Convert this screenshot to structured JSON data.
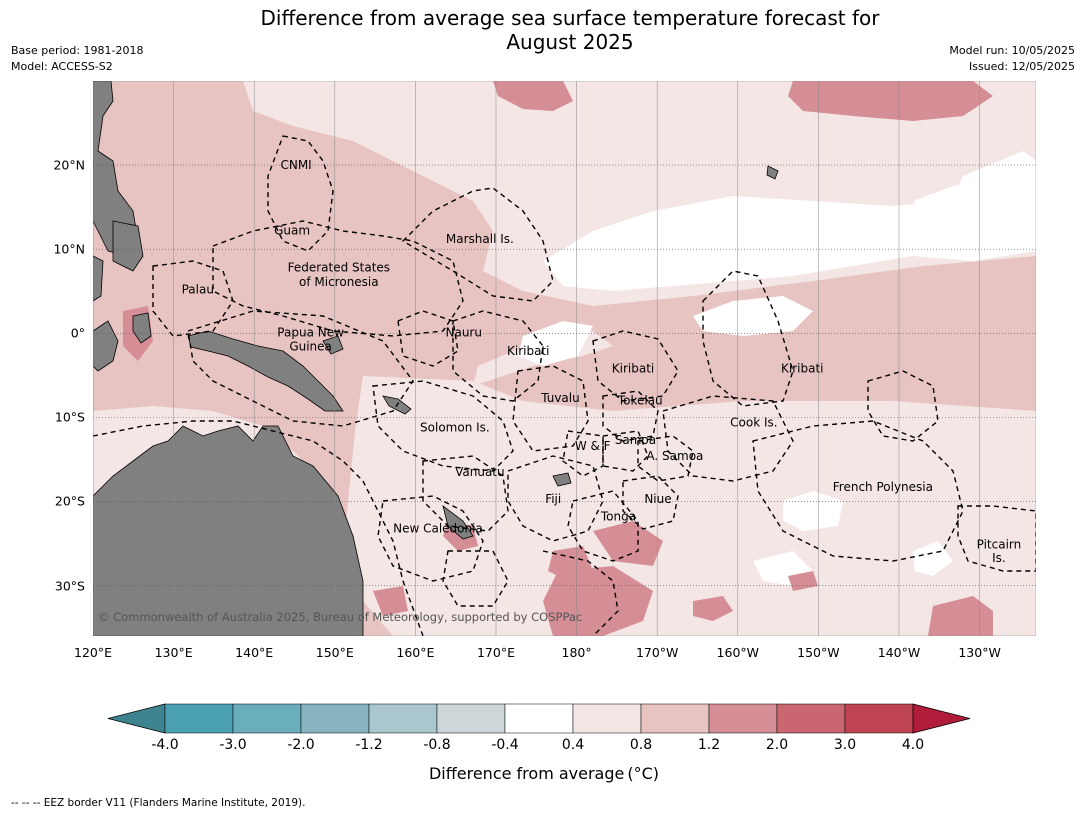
{
  "title_line1": "Difference from average sea surface temperature forecast for",
  "title_line2": "August 2025",
  "meta_left": [
    "Base period: 1981-2018",
    "Model: ACCESS-S2"
  ],
  "meta_right": [
    "Model run: 10/05/2025",
    "Issued: 12/05/2025"
  ],
  "copyright": "© Commonwealth of Australia 2025, Bureau of Meteorology, supported by COSPPac",
  "lat_labels": [
    {
      "text": "20°N",
      "lat": 20
    },
    {
      "text": "10°N",
      "lat": 10
    },
    {
      "text": "0°",
      "lat": 0
    },
    {
      "text": "10°S",
      "lat": -10
    },
    {
      "text": "20°S",
      "lat": -20
    },
    {
      "text": "30°S",
      "lat": -30
    }
  ],
  "lon_labels": [
    {
      "text": "120°E",
      "lon": 120
    },
    {
      "text": "130°E",
      "lon": 130
    },
    {
      "text": "140°E",
      "lon": 140
    },
    {
      "text": "150°E",
      "lon": 150
    },
    {
      "text": "160°E",
      "lon": 160
    },
    {
      "text": "170°E",
      "lon": 170
    },
    {
      "text": "180°",
      "lon": 180
    },
    {
      "text": "170°W",
      "lon": 190
    },
    {
      "text": "160°W",
      "lon": 200
    },
    {
      "text": "150°W",
      "lon": 210
    },
    {
      "text": "140°W",
      "lon": 220
    },
    {
      "text": "130°W",
      "lon": 230
    }
  ],
  "map_extent": {
    "lon": [
      120,
      237
    ],
    "lat": [
      -36,
      30
    ]
  },
  "eez_labels": [
    {
      "text": "CNMI",
      "lon": 145.2,
      "lat": 20.0
    },
    {
      "text": "Guam",
      "lon": 144.7,
      "lat": 12.2
    },
    {
      "text": "Marshall Is.",
      "lon": 168.0,
      "lat": 11.2
    },
    {
      "text": "Federated States",
      "lon": 150.5,
      "lat": 7.8
    },
    {
      "text": "of Micronesia",
      "lon": 150.5,
      "lat": 6.1
    },
    {
      "text": "Palau",
      "lon": 133.0,
      "lat": 5.2
    },
    {
      "text": "Papua New",
      "lon": 147.0,
      "lat": 0.1
    },
    {
      "text": "Guinea",
      "lon": 147.0,
      "lat": -1.6
    },
    {
      "text": "Nauru",
      "lon": 166.0,
      "lat": 0.1
    },
    {
      "text": "Kiribati",
      "lon": 174.0,
      "lat": -2.1
    },
    {
      "text": "Kiribati",
      "lon": 187.0,
      "lat": -4.2
    },
    {
      "text": "Kiribati",
      "lon": 208.0,
      "lat": -4.2
    },
    {
      "text": "Tuvalu",
      "lon": 178.0,
      "lat": -7.7
    },
    {
      "text": "Tokelau",
      "lon": 187.9,
      "lat": -8.0
    },
    {
      "text": "Cook Is.",
      "lon": 202.0,
      "lat": -10.6
    },
    {
      "text": "Solomon Is.",
      "lon": 164.9,
      "lat": -11.2
    },
    {
      "text": "Samoa",
      "lon": 187.3,
      "lat": -12.7
    },
    {
      "text": "W & F",
      "lon": 182.0,
      "lat": -13.4
    },
    {
      "text": "A. Samoa",
      "lon": 192.2,
      "lat": -14.6
    },
    {
      "text": "Vanuatu",
      "lon": 168.0,
      "lat": -16.5
    },
    {
      "text": "French Polynesia",
      "lon": 218.0,
      "lat": -18.3
    },
    {
      "text": "Fiji",
      "lon": 177.1,
      "lat": -19.7
    },
    {
      "text": "Niue",
      "lon": 190.1,
      "lat": -19.7
    },
    {
      "text": "Tonga",
      "lon": 185.2,
      "lat": -21.8
    },
    {
      "text": "New Caledonia",
      "lon": 162.8,
      "lat": -23.2
    },
    {
      "text": "Pitcairn",
      "lon": 232.4,
      "lat": -25.1
    },
    {
      "text": "Is.",
      "lon": 232.4,
      "lat": -26.7
    }
  ],
  "legend": {
    "colors": [
      "#3e8490",
      "#4aa0b1",
      "#6aaebc",
      "#87b4c0",
      "#a9c7cc",
      "#cdd6d8",
      "#ffffff",
      "#f4e6e5",
      "#e7c4c1",
      "#d58e95",
      "#c96670",
      "#c04553",
      "#b01c3a"
    ],
    "ticks": [
      "-4.0",
      "-3.0",
      "-2.0",
      "-1.2",
      "-0.8",
      "-0.4",
      "0.4",
      "0.8",
      "1.2",
      "2.0",
      "3.0",
      "4.0"
    ],
    "label": "Difference from average",
    "unit": "(°C)"
  },
  "footer": "--  --  -- EEZ border V11 (Flanders Marine Institute, 2019)."
}
